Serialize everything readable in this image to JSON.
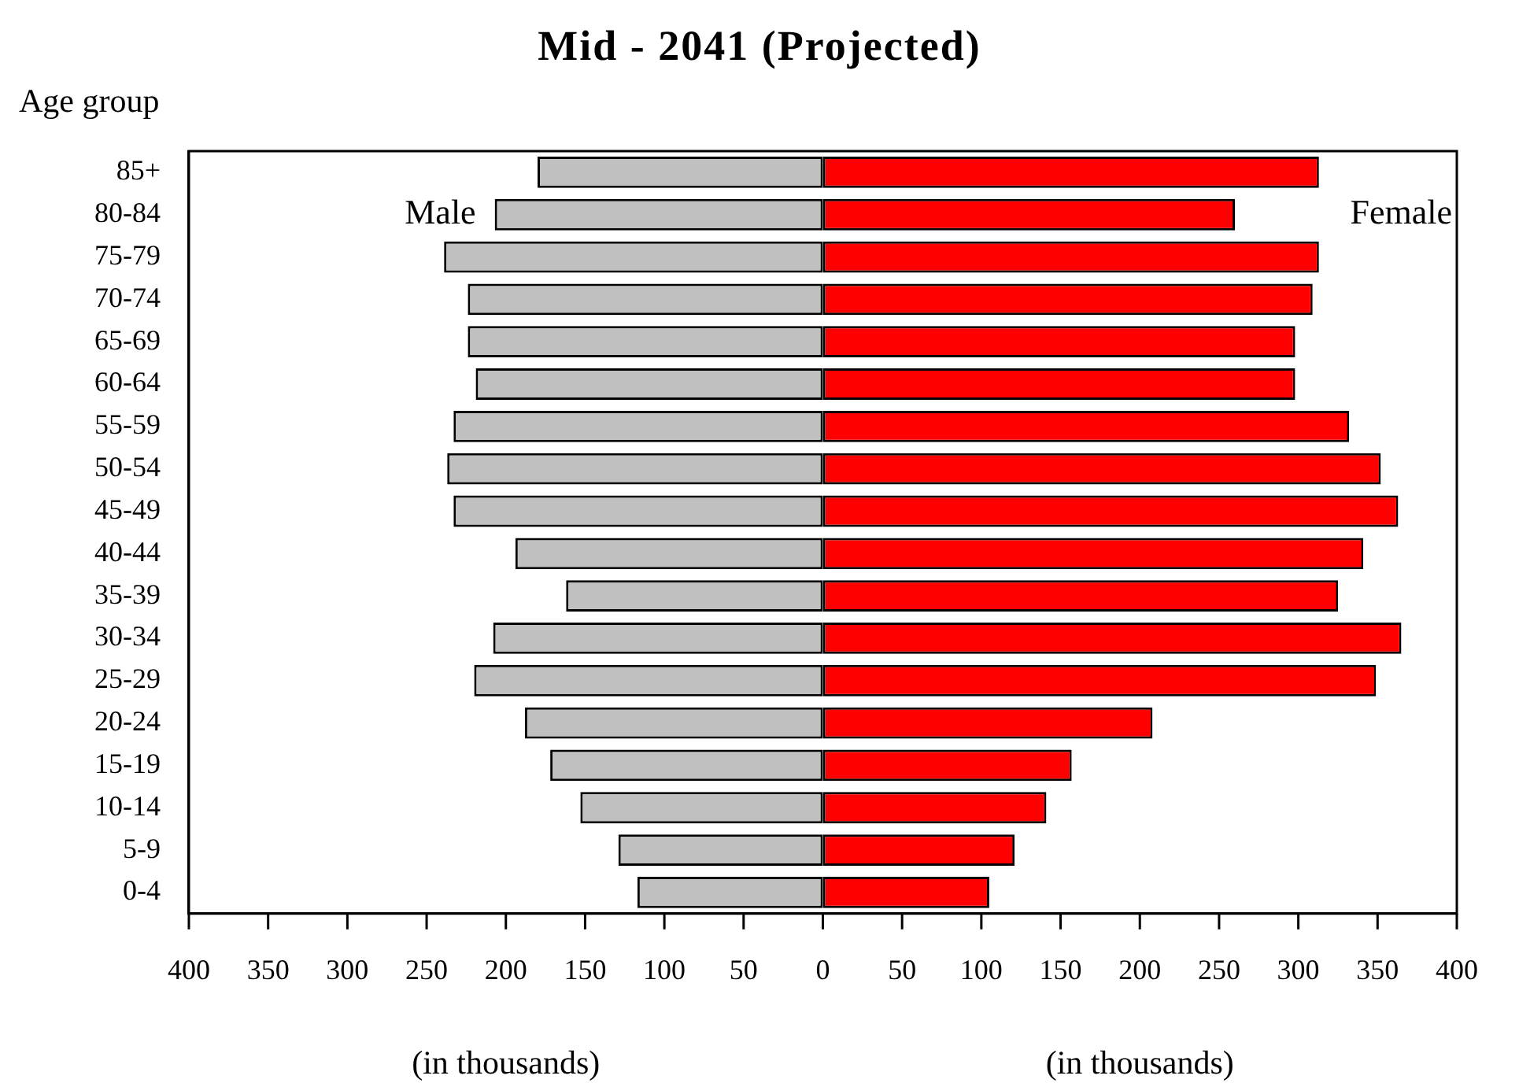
{
  "chart_data": {
    "type": "bar",
    "orientation": "horizontal",
    "stacked": true,
    "title": "Mid - 2041 (Projected)",
    "ylabel": "Age group",
    "categories": [
      "85+",
      "80-84",
      "75-79",
      "70-74",
      "65-69",
      "60-64",
      "55-59",
      "50-54",
      "45-49",
      "40-44",
      "35-39",
      "30-34",
      "25-29",
      "20-24",
      "15-19",
      "10-14",
      "5-9",
      "0-4"
    ],
    "series": [
      {
        "name": "Male",
        "color": "#c0c0c0",
        "values": [
          -180,
          -207,
          -239,
          -224,
          -224,
          -219,
          -233,
          -237,
          -233,
          -194,
          -162,
          -208,
          -220,
          -188,
          -172,
          -153,
          -129,
          -117
        ]
      },
      {
        "name": "Female",
        "color": "#ff0000",
        "values": [
          313,
          260,
          313,
          309,
          298,
          298,
          332,
          352,
          363,
          341,
          325,
          365,
          349,
          208,
          157,
          141,
          121,
          105
        ]
      }
    ],
    "xlim": [
      -400,
      400
    ],
    "xticks": [
      {
        "value": -400,
        "label": "400"
      },
      {
        "value": -350,
        "label": "350"
      },
      {
        "value": -300,
        "label": "300"
      },
      {
        "value": -250,
        "label": "250"
      },
      {
        "value": -200,
        "label": "200"
      },
      {
        "value": -150,
        "label": "150"
      },
      {
        "value": -100,
        "label": "100"
      },
      {
        "value": -50,
        "label": "50"
      },
      0,
      50,
      100,
      150,
      200,
      250,
      300,
      350,
      400
    ],
    "annotations": [
      "(in thousands)",
      "(in thousands)"
    ],
    "grid": false,
    "legend": false
  }
}
